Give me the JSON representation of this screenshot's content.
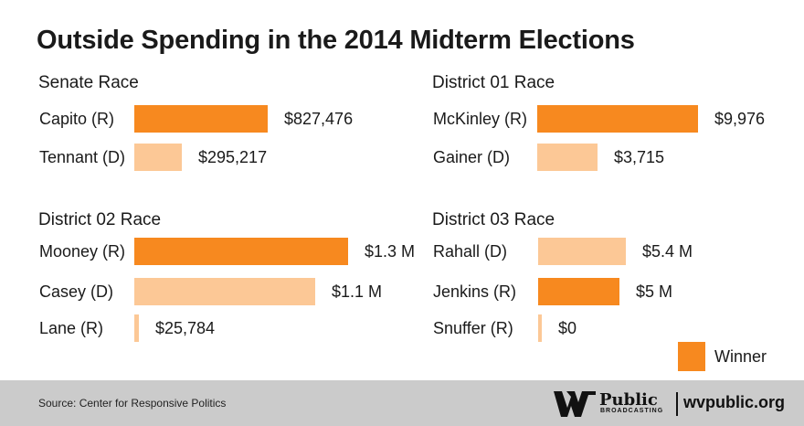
{
  "chart_data": {
    "type": "bar",
    "orientation": "horizontal",
    "title": "Outside Spending in the 2014 Midterm Elections",
    "colors": {
      "winner": "#f7891f",
      "other": "#fcc896"
    },
    "legend": {
      "label": "Winner",
      "placement": "bottom-right"
    },
    "races": [
      {
        "name": "Senate Race",
        "candidates": [
          {
            "label": "Capito (R)",
            "value": 827476,
            "display": "$827,476",
            "winner": true
          },
          {
            "label": "Tennant (D)",
            "value": 295217,
            "display": "$295,217",
            "winner": false
          }
        ]
      },
      {
        "name": "District 01 Race",
        "candidates": [
          {
            "label": "McKinley (R)",
            "value": 9976,
            "display": "$9,976",
            "winner": true
          },
          {
            "label": "Gainer (D)",
            "value": 3715,
            "display": "$3,715",
            "winner": false
          }
        ]
      },
      {
        "name": "District 02 Race",
        "candidates": [
          {
            "label": "Mooney (R)",
            "value": 1300000,
            "display": "$1.3 M",
            "winner": true
          },
          {
            "label": "Casey (D)",
            "value": 1100000,
            "display": "$1.1 M",
            "winner": false
          },
          {
            "label": "Lane (R)",
            "value": 25784,
            "display": "$25,784",
            "winner": false
          }
        ]
      },
      {
        "name": "District 03 Race",
        "candidates": [
          {
            "label": "Rahall (D)",
            "value": 5400000,
            "display": "$5.4 M",
            "winner": false
          },
          {
            "label": "Jenkins (R)",
            "value": 5000000,
            "display": "$5 M",
            "winner": true
          },
          {
            "label": "Snuffer (R)",
            "value": 0,
            "display": "$0",
            "winner": false
          }
        ]
      }
    ]
  },
  "footer": {
    "source": "Source: Center for Responsive Politics",
    "logo_public": "Public",
    "logo_broadcasting": "BROADCASTING",
    "logo_url": "wvpublic.org"
  }
}
